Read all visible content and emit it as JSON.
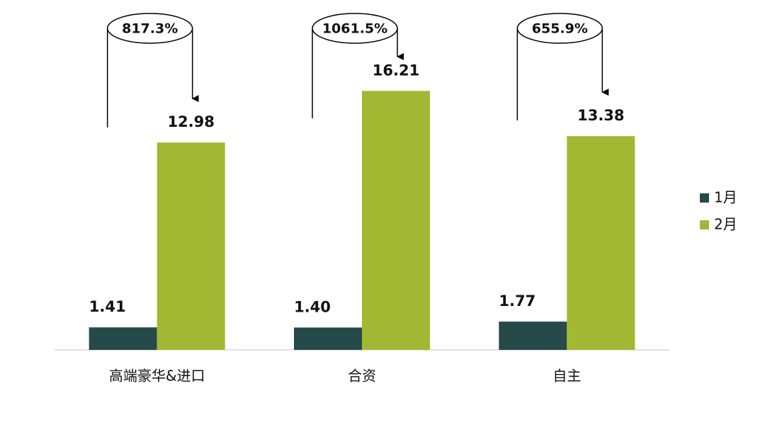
{
  "chart_data": {
    "type": "bar",
    "categories": [
      "高端豪华&进口",
      "合资",
      "自主"
    ],
    "series": [
      {
        "name": "1月",
        "color": "#264a4a",
        "values": [
          1.41,
          1.4,
          1.77
        ],
        "value_labels": [
          "1.41",
          "1.40",
          "1.77"
        ]
      },
      {
        "name": "2月",
        "color": "#a3b832",
        "values": [
          12.98,
          16.21,
          13.38
        ],
        "value_labels": [
          "12.98",
          "16.21",
          "13.38"
        ]
      }
    ],
    "growth_labels": [
      "817.3%",
      "1061.5%",
      "655.9%"
    ],
    "ylim": [
      0,
      18
    ],
    "legend": "right"
  }
}
